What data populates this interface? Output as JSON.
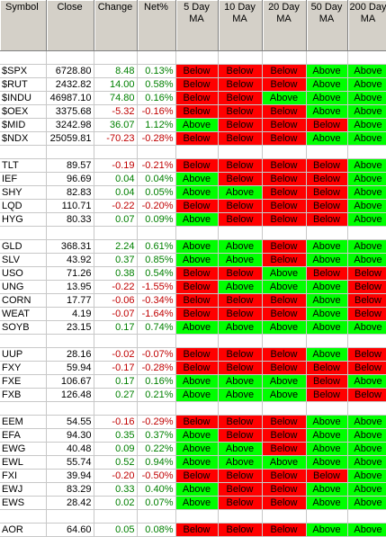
{
  "headers": [
    "Symbol",
    "Close",
    "Change",
    "Net%",
    "5 Day MA",
    "10 Day MA",
    "20 Day MA",
    "50 Day MA",
    "200 Day MA"
  ],
  "groups": [
    [
      [
        "$SPX",
        "6728.80",
        "8.48",
        "0.13%",
        "Below",
        "Below",
        "Below",
        "Above",
        "Above"
      ],
      [
        "$RUT",
        "2432.82",
        "14.00",
        "0.58%",
        "Below",
        "Below",
        "Below",
        "Above",
        "Above"
      ],
      [
        "$INDU",
        "46987.10",
        "74.80",
        "0.16%",
        "Below",
        "Below",
        "Above",
        "Above",
        "Above"
      ],
      [
        "$OEX",
        "3375.68",
        "-5.32",
        "-0.16%",
        "Below",
        "Below",
        "Below",
        "Above",
        "Above"
      ],
      [
        "$MID",
        "3242.98",
        "36.07",
        "1.12%",
        "Above",
        "Below",
        "Below",
        "Below",
        "Above"
      ],
      [
        "$NDX",
        "25059.81",
        "-70.23",
        "-0.28%",
        "Below",
        "Below",
        "Below",
        "Above",
        "Above"
      ]
    ],
    [
      [
        "TLT",
        "89.57",
        "-0.19",
        "-0.21%",
        "Below",
        "Below",
        "Below",
        "Below",
        "Above"
      ],
      [
        "IEF",
        "96.69",
        "0.04",
        "0.04%",
        "Above",
        "Below",
        "Below",
        "Below",
        "Above"
      ],
      [
        "SHY",
        "82.83",
        "0.04",
        "0.05%",
        "Above",
        "Above",
        "Below",
        "Below",
        "Above"
      ],
      [
        "LQD",
        "110.71",
        "-0.22",
        "-0.20%",
        "Below",
        "Below",
        "Below",
        "Below",
        "Above"
      ],
      [
        "HYG",
        "80.33",
        "0.07",
        "0.09%",
        "Above",
        "Below",
        "Below",
        "Below",
        "Above"
      ]
    ],
    [
      [
        "GLD",
        "368.31",
        "2.24",
        "0.61%",
        "Above",
        "Above",
        "Below",
        "Above",
        "Above"
      ],
      [
        "SLV",
        "43.92",
        "0.37",
        "0.85%",
        "Above",
        "Above",
        "Below",
        "Above",
        "Above"
      ],
      [
        "USO",
        "71.26",
        "0.38",
        "0.54%",
        "Below",
        "Below",
        "Above",
        "Below",
        "Below"
      ],
      [
        "UNG",
        "13.95",
        "-0.22",
        "-1.55%",
        "Below",
        "Above",
        "Above",
        "Above",
        "Below"
      ],
      [
        "CORN",
        "17.77",
        "-0.06",
        "-0.34%",
        "Below",
        "Below",
        "Below",
        "Above",
        "Below"
      ],
      [
        "WEAT",
        "4.19",
        "-0.07",
        "-1.64%",
        "Below",
        "Below",
        "Below",
        "Above",
        "Below"
      ],
      [
        "SOYB",
        "23.15",
        "0.17",
        "0.74%",
        "Above",
        "Above",
        "Above",
        "Above",
        "Above"
      ]
    ],
    [
      [
        "UUP",
        "28.16",
        "-0.02",
        "-0.07%",
        "Below",
        "Below",
        "Below",
        "Above",
        "Below"
      ],
      [
        "FXY",
        "59.94",
        "-0.17",
        "-0.28%",
        "Below",
        "Below",
        "Below",
        "Below",
        "Below"
      ],
      [
        "FXE",
        "106.67",
        "0.17",
        "0.16%",
        "Above",
        "Above",
        "Above",
        "Below",
        "Above"
      ],
      [
        "FXB",
        "126.48",
        "0.27",
        "0.21%",
        "Above",
        "Above",
        "Above",
        "Below",
        "Below"
      ]
    ],
    [
      [
        "EEM",
        "54.55",
        "-0.16",
        "-0.29%",
        "Below",
        "Below",
        "Below",
        "Above",
        "Above"
      ],
      [
        "EFA",
        "94.30",
        "0.35",
        "0.37%",
        "Above",
        "Below",
        "Below",
        "Above",
        "Above"
      ],
      [
        "EWG",
        "40.48",
        "0.09",
        "0.22%",
        "Above",
        "Above",
        "Below",
        "Above",
        "Above"
      ],
      [
        "EWL",
        "55.74",
        "0.52",
        "0.94%",
        "Above",
        "Above",
        "Above",
        "Above",
        "Above"
      ],
      [
        "FXI",
        "39.94",
        "-0.20",
        "-0.50%",
        "Below",
        "Below",
        "Below",
        "Below",
        "Above"
      ],
      [
        "EWJ",
        "83.29",
        "0.33",
        "0.40%",
        "Above",
        "Below",
        "Below",
        "Above",
        "Above"
      ],
      [
        "EWS",
        "28.42",
        "0.02",
        "0.07%",
        "Above",
        "Below",
        "Below",
        "Above",
        "Above"
      ]
    ],
    [
      [
        "AOR",
        "64.60",
        "0.05",
        "0.08%",
        "Below",
        "Below",
        "Below",
        "Above",
        "Above"
      ]
    ]
  ],
  "colors": {
    "above": "#00ff00",
    "below": "#ff0000",
    "positive_text": "#008000",
    "negative_text": "#c00000",
    "header_bg": "#d4d0c8"
  }
}
